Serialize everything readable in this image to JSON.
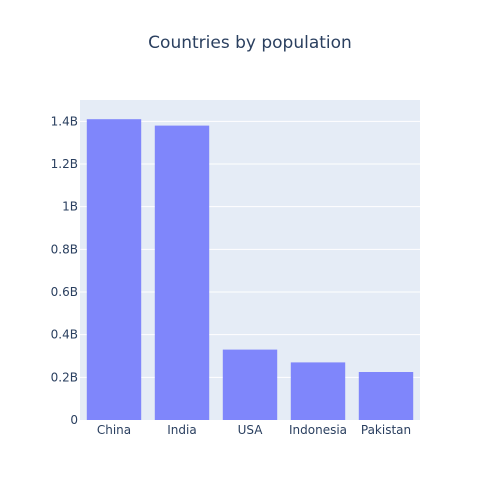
{
  "chart_data": {
    "type": "bar",
    "title": "Countries by population",
    "xlabel": "",
    "ylabel": "",
    "categories": [
      "China",
      "India",
      "USA",
      "Indonesia",
      "Pakistan"
    ],
    "values": [
      1.41,
      1.38,
      0.33,
      0.27,
      0.225
    ],
    "value_unit": "billions",
    "ylim": [
      0,
      1.5
    ],
    "yticks": [
      0,
      0.2,
      0.4,
      0.6,
      0.8,
      1.0,
      1.2,
      1.4
    ],
    "ytick_labels": [
      "0",
      "0.2B",
      "0.4B",
      "0.6B",
      "0.8B",
      "1B",
      "1.2B",
      "1.4B"
    ],
    "grid": true,
    "legend": "none",
    "colors": {
      "bar": "#7f86fb",
      "plot_bg": "#e5ecf6",
      "grid": "#ffffff",
      "text": "#2a3f5f"
    }
  }
}
